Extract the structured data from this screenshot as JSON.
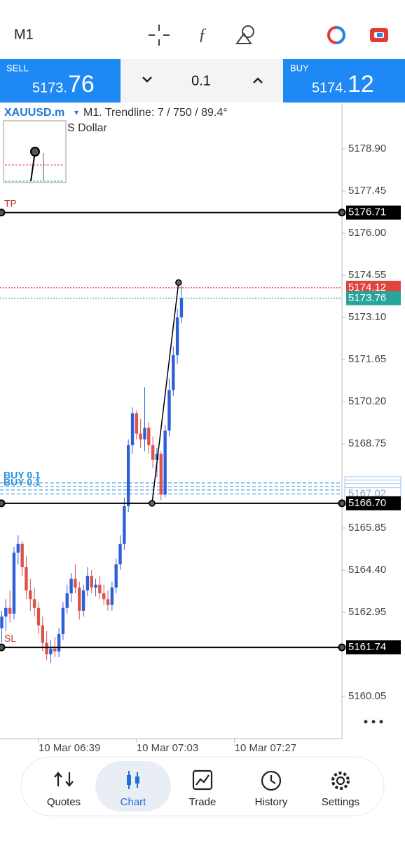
{
  "top_bar": {
    "timeframe": "M1"
  },
  "trade_panel": {
    "sell_label": "SELL",
    "sell_price_main": "5173.",
    "sell_price_pips": "76",
    "lot": "0.1",
    "buy_label": "BUY",
    "buy_price_main": "5174.",
    "buy_price_pips": "12"
  },
  "chart_data": {
    "type": "candlestick",
    "symbol": "XAUUSD.m",
    "symbol_arrow": "▾",
    "subtitle": "M1. Trendline: 7 / 750 / 89.4°",
    "description": "S Dollar",
    "open": [
      5162.4,
      5162.8,
      5163.1,
      5162.9,
      5165.0,
      5165.3,
      5164.5,
      5163.7,
      5163.4,
      5163.1,
      5162.5,
      5161.9,
      5161.5,
      5161.7,
      5161.6,
      5162.2,
      5163.1,
      5163.6,
      5164.1,
      5163.8,
      5163.0,
      5163.7,
      5164.2,
      5163.8,
      5163.9,
      5163.6,
      5163.4,
      5163.2,
      5163.8,
      5164.6,
      5165.3,
      5166.6,
      5168.7,
      5169.8,
      5169.1,
      5168.9,
      5169.3,
      5168.7,
      5168.2,
      5168.4,
      5167.0,
      5169.2,
      5170.6,
      5171.8,
      5173.1
    ],
    "high": [
      5163.0,
      5163.4,
      5163.7,
      5165.2,
      5165.6,
      5165.4,
      5164.9,
      5164.1,
      5163.8,
      5163.3,
      5162.8,
      5162.3,
      5162.0,
      5162.1,
      5162.4,
      5163.3,
      5163.9,
      5164.3,
      5164.6,
      5164.0,
      5163.9,
      5164.5,
      5164.4,
      5164.1,
      5164.2,
      5163.9,
      5163.7,
      5164.0,
      5164.8,
      5165.6,
      5166.9,
      5168.9,
      5170.0,
      5169.9,
      5169.6,
      5170.7,
      5169.5,
      5169.0,
      5168.6,
      5168.5,
      5169.4,
      5171.0,
      5172.1,
      5173.4,
      5174.2
    ],
    "low": [
      5161.9,
      5162.3,
      5162.6,
      5162.7,
      5164.6,
      5164.2,
      5163.4,
      5163.0,
      5162.8,
      5162.2,
      5161.6,
      5161.3,
      5161.2,
      5161.4,
      5161.4,
      5162.0,
      5162.9,
      5163.3,
      5163.6,
      5162.7,
      5162.8,
      5163.5,
      5163.6,
      5163.5,
      5163.4,
      5163.2,
      5163.0,
      5163.0,
      5163.6,
      5164.4,
      5165.1,
      5166.4,
      5168.4,
      5168.9,
      5168.6,
      5168.5,
      5168.4,
      5167.9,
      5167.6,
      5166.8,
      5166.9,
      5169.0,
      5170.4,
      5171.5,
      5172.9
    ],
    "close": [
      5162.8,
      5163.1,
      5162.9,
      5165.0,
      5165.3,
      5164.5,
      5163.7,
      5163.4,
      5163.1,
      5162.5,
      5161.9,
      5161.5,
      5161.7,
      5161.6,
      5162.2,
      5163.1,
      5163.6,
      5164.1,
      5163.8,
      5163.0,
      5163.7,
      5164.2,
      5163.8,
      5163.9,
      5163.6,
      5163.4,
      5163.2,
      5163.8,
      5164.6,
      5165.3,
      5166.6,
      5168.7,
      5169.8,
      5169.1,
      5168.9,
      5169.3,
      5168.7,
      5168.2,
      5168.4,
      5167.0,
      5169.2,
      5170.6,
      5171.8,
      5173.1,
      5173.76
    ],
    "up_color": "#2f5fd8",
    "down_color": "#d9534f",
    "ylim": [
      5158.6,
      5180.45
    ],
    "yticks": [
      {
        "value": 5178.9,
        "label": "5178.90"
      },
      5177.45,
      {
        "value": 5176,
        "label": "5176.00"
      },
      5174.55,
      {
        "value": 5173.1,
        "label": "5173.10"
      },
      5171.65,
      {
        "value": 5170.2,
        "label": "5170.20"
      },
      5168.75,
      5165.85,
      {
        "value": 5164.4,
        "label": "5164.40"
      },
      5162.95,
      5160.05
    ],
    "xlim": [
      -0.43,
      83.3
    ],
    "xticks": [
      {
        "value": 9,
        "label": "10 Mar 06:39"
      },
      {
        "value": 33,
        "label": "10 Mar 07:03"
      },
      {
        "value": 57,
        "label": "10 Mar 07:27"
      }
    ],
    "levels": [
      {
        "text": "TP",
        "value": 5176.71,
        "style": "solid",
        "color": "#000000"
      },
      {
        "text": "SL",
        "value": 5161.74,
        "style": "solid",
        "color": "#000000"
      },
      {
        "value": 5174.12,
        "style": "dotted",
        "color": "#e0443e"
      },
      {
        "value": 5173.76,
        "style": "dotted",
        "color": "#26a69a"
      },
      {
        "value": 5166.7,
        "label": "5166.70",
        "style": "solid",
        "color": "#000000"
      }
    ],
    "orders": [
      {
        "text": "BUY 0.1",
        "value": 5167.4
      },
      {
        "value": 5167.28
      },
      {
        "text": "BUY 0.1",
        "value": 5167.16
      },
      {
        "value": 5167.02,
        "label": "5167.02"
      }
    ],
    "order_color": "#2b8fd8",
    "trendline": {
      "x": [
        36.8,
        43.3
      ],
      "y": [
        5166.7,
        5174.3
      ]
    }
  },
  "nav": {
    "items": [
      "Quotes",
      "Chart",
      "Trade",
      "History",
      "Settings"
    ],
    "active": 1
  }
}
